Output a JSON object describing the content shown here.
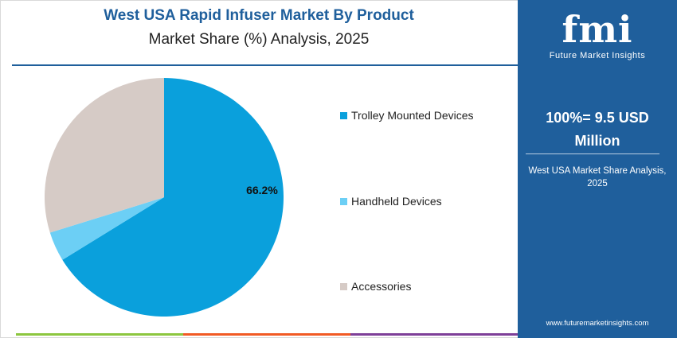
{
  "header": {
    "title": "West USA Rapid Infuser Market By Product",
    "subtitle": "Market Share (%) Analysis, 2025"
  },
  "chart_data": {
    "type": "pie",
    "categories": [
      "Trolley Mounted Devices",
      "Handheld Devices",
      "Accessories"
    ],
    "values": [
      66.2,
      4.0,
      29.8
    ],
    "labels": [
      "66.2%",
      "",
      ""
    ],
    "colors": [
      "#0aa0dc",
      "#6ccff5",
      "#d6cbc6"
    ],
    "legend_position": "right"
  },
  "sidebar": {
    "logo_text": "fmi",
    "logo_tagline": "Future Market Insights",
    "total_line1": "100%= 9.5 USD",
    "total_line2": "Million",
    "note": "West USA Market Share Analysis, 2025",
    "website": "www.futuremarketinsights.com",
    "background": "#1f5f9c"
  },
  "bottom_bar_colors": [
    "#8cc63f",
    "#f15a24",
    "#7e3f98"
  ]
}
